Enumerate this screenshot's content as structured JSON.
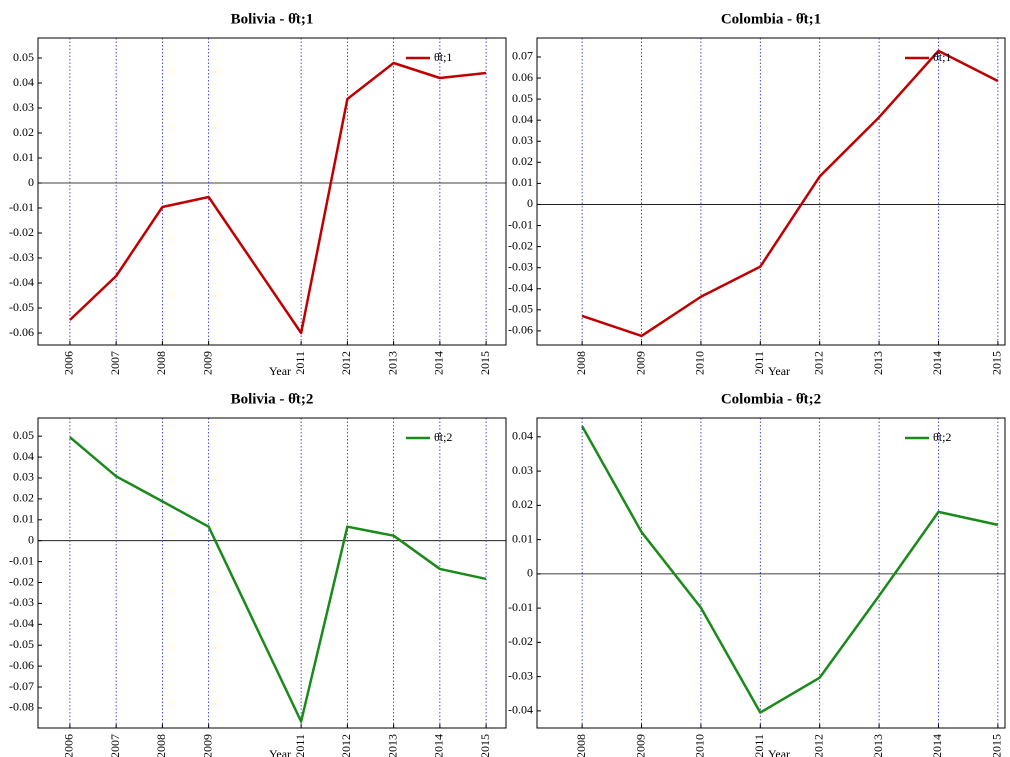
{
  "chart_data": [
    {
      "type": "line",
      "title": "Bolivia - θ̂t;1",
      "x_label": "Year",
      "x": [
        2006,
        2007,
        2008,
        2009,
        2011,
        2012,
        2013,
        2014,
        2015
      ],
      "series": [
        {
          "name": "θ̂t;1",
          "color": "#c00000",
          "values": [
            -0.0548,
            -0.0372,
            -0.0096,
            -0.0056,
            -0.06,
            0.0336,
            0.048,
            0.042,
            0.044
          ]
        }
      ],
      "xlim": [
        2005.31,
        2015.43
      ],
      "xticks": [
        2006,
        2007,
        2008,
        2009,
        2011,
        2012,
        2013,
        2014,
        2015
      ],
      "ylim": [
        -0.0648,
        0.058
      ],
      "yticks": [
        -0.06,
        -0.05,
        -0.04,
        -0.03,
        -0.02,
        -0.01,
        0,
        0.01,
        0.02,
        0.03,
        0.04,
        0.05
      ],
      "grid": "x",
      "zero_line": true,
      "legend": "upper right"
    },
    {
      "type": "line",
      "title": "Colombia - θ̂t;1",
      "x_label": "Year",
      "x": [
        2008,
        2009,
        2010,
        2011,
        2012,
        2013,
        2014,
        2015
      ],
      "series": [
        {
          "name": "θ̂t;1",
          "color": "#c00000",
          "values": [
            -0.0529,
            -0.0624,
            -0.0438,
            -0.0295,
            0.0133,
            0.0414,
            0.0729,
            0.0586
          ]
        }
      ],
      "xlim": [
        2007.24,
        2015.12
      ],
      "xticks": [
        2008,
        2009,
        2010,
        2011,
        2012,
        2013,
        2014,
        2015
      ],
      "ylim": [
        -0.0667,
        0.079
      ],
      "yticks": [
        -0.06,
        -0.05,
        -0.04,
        -0.03,
        -0.02,
        -0.01,
        0,
        0.01,
        0.02,
        0.03,
        0.04,
        0.05,
        0.06,
        0.07
      ],
      "grid": "x",
      "zero_line": true,
      "legend": "upper right"
    },
    {
      "type": "line",
      "title": "Bolivia - θ̂t;2",
      "x_label": "Year",
      "x": [
        2006,
        2007,
        2008,
        2009,
        2011,
        2012,
        2013,
        2014,
        2015
      ],
      "series": [
        {
          "name": "θ̂t;2",
          "color": "#1a8a1a",
          "values": [
            0.0495,
            0.0308,
            0.0188,
            0.0067,
            -0.0865,
            0.0067,
            0.0024,
            -0.0135,
            -0.0183
          ]
        }
      ],
      "xlim": [
        2005.31,
        2015.43
      ],
      "xticks": [
        2006,
        2007,
        2008,
        2009,
        2011,
        2012,
        2013,
        2014,
        2015
      ],
      "ylim": [
        -0.0896,
        0.0587
      ],
      "yticks": [
        -0.08,
        -0.07,
        -0.06,
        -0.05,
        -0.04,
        -0.03,
        -0.02,
        -0.01,
        0,
        0.01,
        0.02,
        0.03,
        0.04,
        0.05
      ],
      "grid": "x",
      "zero_line": true,
      "legend": "upper right"
    },
    {
      "type": "line",
      "title": "Colombia - θ̂t;2",
      "x_label": "Year",
      "x": [
        2008,
        2009,
        2010,
        2011,
        2012,
        2013,
        2014,
        2015
      ],
      "series": [
        {
          "name": "θ̂t;2",
          "color": "#1a8a1a",
          "values": [
            0.0431,
            0.0122,
            -0.0099,
            -0.0405,
            -0.0303,
            -0.0064,
            0.0181,
            0.0143
          ]
        }
      ],
      "xlim": [
        2007.24,
        2015.12
      ],
      "xticks": [
        2008,
        2009,
        2010,
        2011,
        2012,
        2013,
        2014,
        2015
      ],
      "ylim": [
        -0.045,
        0.0455
      ],
      "yticks": [
        -0.04,
        -0.03,
        -0.02,
        -0.01,
        0,
        0.01,
        0.02,
        0.03,
        0.04
      ],
      "grid": "x",
      "zero_line": true,
      "legend": "upper right"
    }
  ]
}
